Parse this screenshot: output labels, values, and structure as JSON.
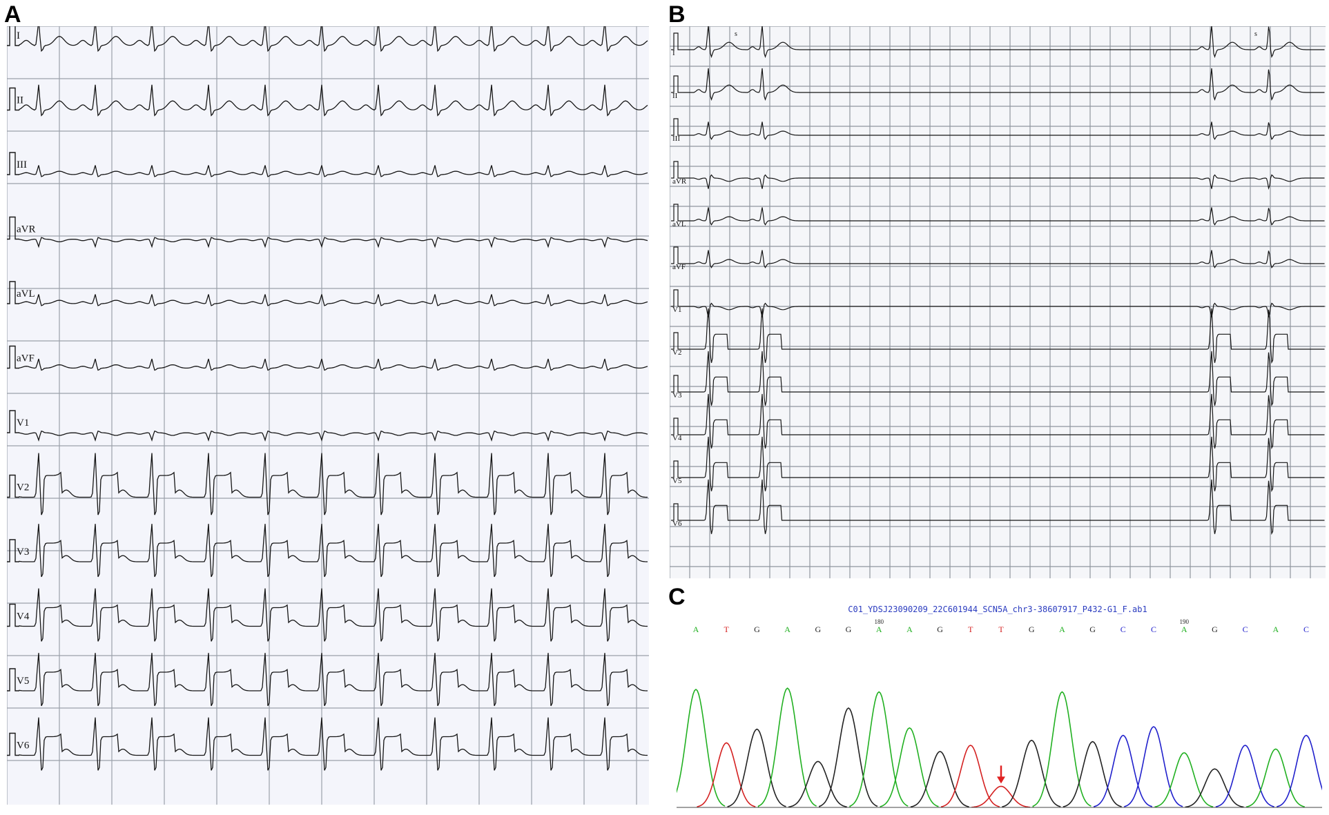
{
  "panels": {
    "a": {
      "letter": "A",
      "leads": [
        "I",
        "II",
        "III",
        "aVR",
        "aVL",
        "aVF",
        "V1",
        "V2",
        "V3",
        "V4",
        "V5",
        "V6"
      ]
    },
    "b": {
      "letter": "B",
      "leads": [
        "I",
        "II",
        "III",
        "aVR",
        "aVL",
        "aVF",
        "V1",
        "V2",
        "V3",
        "V4",
        "V5",
        "V6"
      ],
      "marker": "s"
    },
    "c": {
      "letter": "C",
      "file_title": "C01_YDSJ23090209_22C601944_SCN5A_chr3-38607917_P432-G1_F.ab1",
      "bases": [
        "A",
        "T",
        "G",
        "A",
        "G",
        "G",
        "A",
        "A",
        "G",
        "T",
        "T",
        "G",
        "A",
        "G",
        "C",
        "C",
        "A",
        "G",
        "C",
        "A",
        "C"
      ],
      "position_labels": [
        {
          "label": "180",
          "base_index": 6
        },
        {
          "label": "190",
          "base_index": 16
        }
      ],
      "base_colors": {
        "A": "#21b021",
        "T": "#d42020",
        "G": "#222222",
        "C": "#2020cc"
      },
      "arrow_color": "#e02020"
    }
  }
}
